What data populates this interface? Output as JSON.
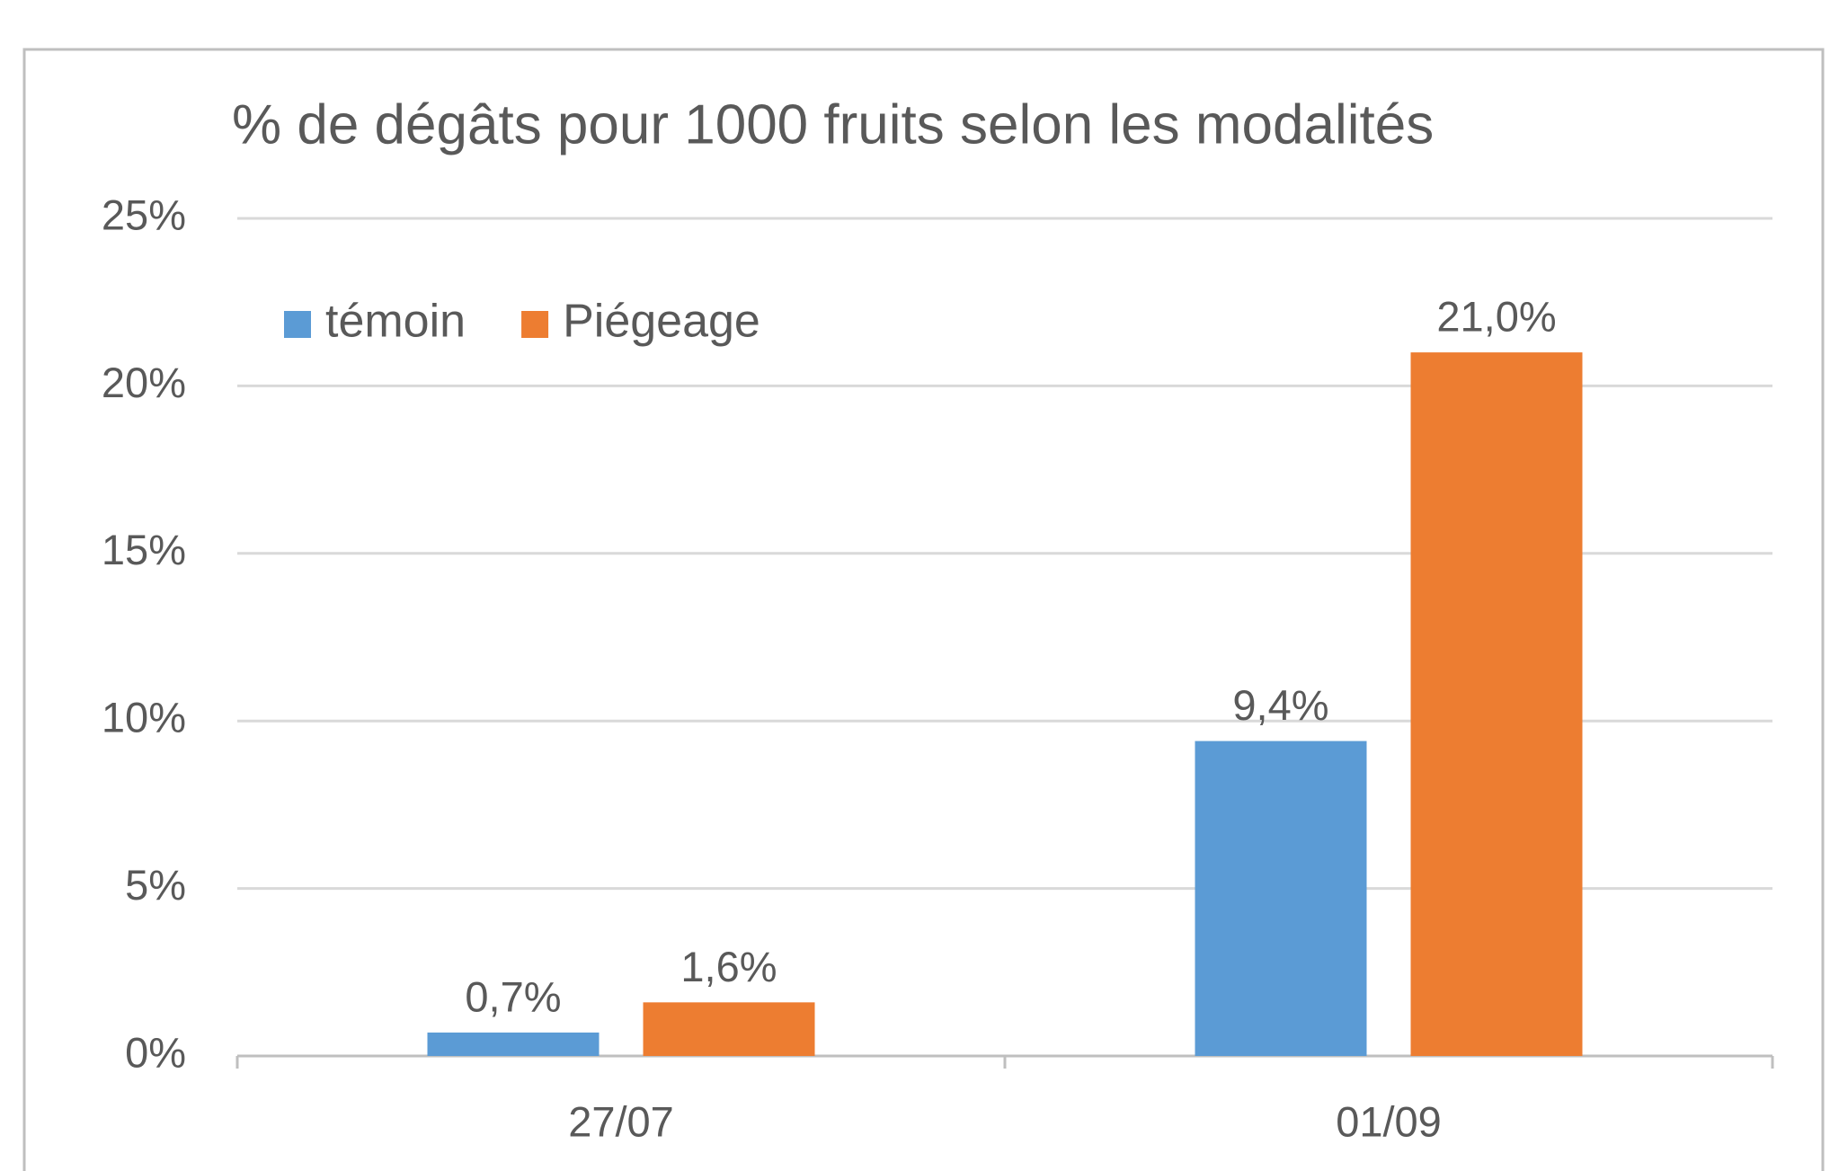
{
  "chart_data": {
    "type": "bar",
    "title": "% de dégâts pour 1000 fruits selon les modalités",
    "categories": [
      "27/07",
      "01/09"
    ],
    "series": [
      {
        "name": "témoin",
        "color": "#5b9bd5",
        "values": [
          0.7,
          9.4
        ],
        "value_labels": [
          "0,7%",
          "9,4%"
        ]
      },
      {
        "name": "Piégeage",
        "color": "#ed7d31",
        "values": [
          1.6,
          21.0
        ],
        "value_labels": [
          "1,6%",
          "21,0%"
        ]
      }
    ],
    "ylim": [
      0,
      25
    ],
    "yticks": [
      {
        "value": 0,
        "label": "0%"
      },
      {
        "value": 5,
        "label": "5%"
      },
      {
        "value": 10,
        "label": "10%"
      },
      {
        "value": 15,
        "label": "15%"
      },
      {
        "value": 20,
        "label": "20%"
      },
      {
        "value": 25,
        "label": "25%"
      }
    ],
    "grid": true,
    "legend": "top-left"
  }
}
